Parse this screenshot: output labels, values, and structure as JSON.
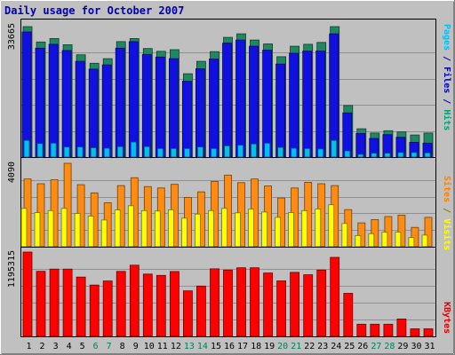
{
  "chart_data": {
    "type": "bar",
    "title": "Daily usage for October 2007",
    "categories": [
      "1",
      "2",
      "3",
      "4",
      "5",
      "6",
      "7",
      "8",
      "9",
      "10",
      "11",
      "12",
      "13",
      "14",
      "15",
      "16",
      "17",
      "18",
      "19",
      "20",
      "21",
      "22",
      "23",
      "24",
      "25",
      "26",
      "27",
      "28",
      "29",
      "30",
      "31"
    ],
    "weekend_days": [
      "6",
      "7",
      "13",
      "14",
      "20",
      "21",
      "27",
      "28"
    ],
    "panels": [
      {
        "id": "hits",
        "ymax_label": "33665",
        "ymax": 33665,
        "side_labels": [
          {
            "text": "Pages",
            "color": "#00c0ff"
          },
          {
            "text": " / ",
            "color": "#0000b0"
          },
          {
            "text": "Files",
            "color": "#0000b0"
          },
          {
            "text": " / ",
            "color": "#0000b0"
          },
          {
            "text": "Hits",
            "color": "#00a070"
          }
        ],
        "series": [
          {
            "name": "Hits",
            "color": "#208860",
            "values": [
              33665,
              29700,
              30600,
              29000,
              26400,
              24200,
              25400,
              29800,
              30600,
              28000,
              27300,
              27700,
              21500,
              24700,
              27200,
              30900,
              31800,
              30200,
              29200,
              25900,
              28600,
              29100,
              29600,
              33665,
              13300,
              7300,
              6200,
              6800,
              6500,
              5700,
              6200
            ]
          },
          {
            "name": "Files",
            "color": "#1010e0",
            "values": [
              32300,
              28100,
              29100,
              27500,
              24700,
              22700,
              23800,
              28100,
              29800,
              26500,
              25800,
              25400,
              19600,
              22800,
              25300,
              29400,
              30200,
              28600,
              27600,
              24000,
              26800,
              27400,
              27400,
              31800,
              11400,
              6100,
              4800,
              5800,
              5100,
              3800,
              3600
            ]
          },
          {
            "name": "Pages",
            "color": "#00c0f0",
            "values": [
              4300,
              3500,
              3600,
              2600,
              2600,
              2400,
              2300,
              2700,
              3900,
              2700,
              2200,
              2200,
              2200,
              2600,
              2200,
              2900,
              3100,
              3400,
              3600,
              2500,
              2300,
              2200,
              2100,
              4300,
              1600,
              700,
              1000,
              1000,
              1200,
              1200,
              1100
            ]
          }
        ]
      },
      {
        "id": "visits",
        "ymax_label": "4090",
        "ymax": 4090,
        "side_labels": [
          {
            "text": "Sites",
            "color": "#ff8000"
          },
          {
            "text": " / ",
            "color": "#808000"
          },
          {
            "text": "Visits",
            "color": "#ffff00"
          }
        ],
        "series": [
          {
            "name": "Visits",
            "color": "#ff8c10",
            "values": [
              3320,
              3090,
              3280,
              4090,
              3040,
              2640,
              2160,
              3000,
              3380,
              2950,
              2880,
              3060,
              2420,
              2690,
              3200,
              3510,
              3140,
              3320,
              2980,
              2390,
              2880,
              3160,
              3090,
              3000,
              1820,
              1170,
              1330,
              1480,
              1550,
              950,
              1440
            ]
          },
          {
            "name": "Sites",
            "color": "#ffff00",
            "values": [
              1880,
              1670,
              1770,
              1880,
              1630,
              1500,
              1310,
              1800,
              2010,
              1770,
              1750,
              1810,
              1400,
              1600,
              1770,
              1880,
              1660,
              1840,
              1700,
              1440,
              1670,
              1770,
              1850,
              2060,
              1140,
              550,
              640,
              710,
              720,
              450,
              570
            ]
          }
        ]
      },
      {
        "id": "kbytes",
        "ymax_label": "1195315",
        "ymax": 1195315,
        "side_labels": [
          {
            "text": "KBytes",
            "color": "#e00000"
          }
        ],
        "series": [
          {
            "name": "KBytes",
            "color": "#ff0000",
            "values": [
              1195315,
              922000,
              954000,
              954000,
              841000,
              727000,
              785000,
              921000,
              1009000,
              883000,
              864000,
              920000,
              645000,
              714000,
              958000,
              940000,
              973000,
              972000,
              898000,
              787000,
              907000,
              873000,
              940000,
              1120000,
              610000,
              172000,
              172000,
              172000,
              247000,
              107000,
              107000
            ]
          }
        ]
      }
    ]
  }
}
